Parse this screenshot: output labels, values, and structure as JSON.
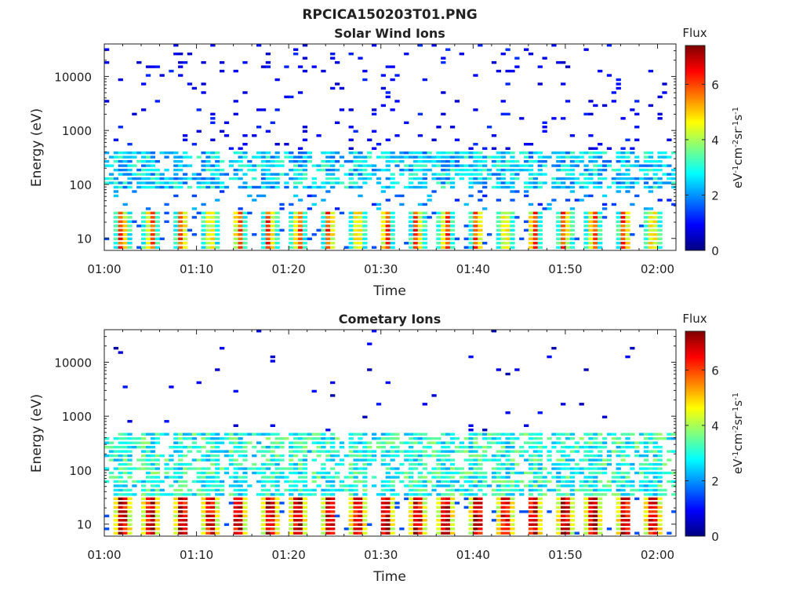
{
  "figure_title": "RPCICA150203T01.PNG",
  "chart_data": [
    {
      "type": "heatmap",
      "title": "Solar Wind Ions",
      "xlabel": "Time",
      "ylabel": "Energy (eV)",
      "x_ticks": [
        "01:00",
        "01:10",
        "01:20",
        "01:30",
        "01:40",
        "01:50",
        "02:00"
      ],
      "x_range_minutes": [
        0,
        62
      ],
      "y_scale": "log",
      "y_ticks": [
        "10",
        "100",
        "1000",
        "10000"
      ],
      "y_range_eV": [
        6,
        40000
      ],
      "colorbar": {
        "title": "Flux",
        "label": "eV-1cm-2sr-1s-1",
        "ticks": [
          "0",
          "2",
          "4",
          "6"
        ],
        "range": [
          0,
          7.4
        ],
        "colormap": "jet"
      },
      "low_band_eV": [
        6,
        30
      ],
      "low_band_flux": [
        3.0,
        4.5,
        6.0,
        4.5,
        3.0
      ],
      "main_band_eV": [
        100,
        300
      ],
      "main_band_flux": 2.5,
      "sparse_high_flux": 0.5,
      "pulse_period_minutes": 3.2,
      "grid": false
    },
    {
      "type": "heatmap",
      "title": "Cometary Ions",
      "xlabel": "Time",
      "ylabel": "Energy (eV)",
      "x_ticks": [
        "01:00",
        "01:10",
        "01:20",
        "01:30",
        "01:40",
        "01:50",
        "02:00"
      ],
      "x_range_minutes": [
        0,
        62
      ],
      "y_scale": "log",
      "y_ticks": [
        "10",
        "100",
        "1000",
        "10000"
      ],
      "y_range_eV": [
        6,
        40000
      ],
      "colorbar": {
        "title": "Flux",
        "label": "eV-1cm-2sr-1s-1",
        "ticks": [
          "0",
          "2",
          "4",
          "6"
        ],
        "range": [
          0,
          7.4
        ],
        "colormap": "jet"
      },
      "low_band_eV": [
        6,
        30
      ],
      "low_band_flux": [
        4.5,
        6.5,
        7.0,
        6.5,
        4.5
      ],
      "main_band_eV": [
        30,
        400
      ],
      "main_band_flux": 3.0,
      "sparse_high_flux": 0.3,
      "pulse_period_minutes": 3.2,
      "grid": false
    }
  ]
}
